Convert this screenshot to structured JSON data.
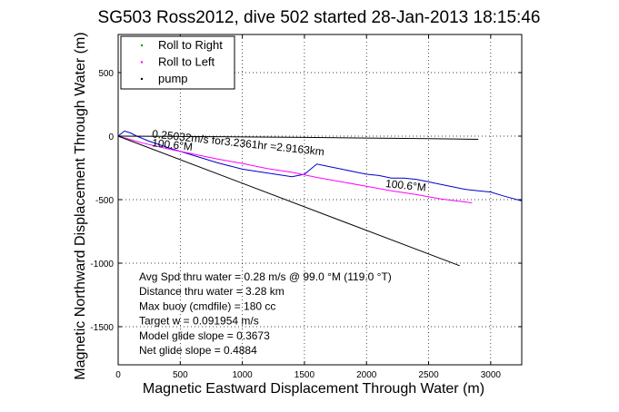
{
  "chart_data": {
    "type": "line",
    "title": "SG503 Ross2012, dive 502 started 28-Jan-2013 18:15:46",
    "xlabel": "Magnetic Eastward Displacement Through Water (m)",
    "ylabel": "Magnetic Northward Displacement Through Water (m)",
    "xlim": [
      0,
      3250
    ],
    "ylim": [
      -1800,
      800
    ],
    "xticks": [
      0,
      500,
      1000,
      1500,
      2000,
      2500,
      3000
    ],
    "yticks": [
      -1500,
      -1000,
      -500,
      0,
      500
    ],
    "grid": true,
    "legend_position": "top-left",
    "legend": [
      {
        "label": "Roll to Right",
        "color": "#00a000",
        "marker": "dot"
      },
      {
        "label": "Roll to Left",
        "color": "#ff00ff",
        "marker": "dot"
      },
      {
        "label": "pump",
        "color": "#000000",
        "marker": "dot"
      }
    ],
    "series": [
      {
        "id": "track",
        "color": "#0000cc",
        "x": [
          0,
          50,
          100,
          150,
          250,
          400,
          600,
          800,
          1000,
          1200,
          1400,
          1500,
          1600,
          1700,
          1800,
          1900,
          2000,
          2100,
          2200,
          2300,
          2400,
          2500,
          2600,
          2700,
          2800,
          2900,
          3000,
          3100,
          3250
        ],
        "y": [
          0,
          40,
          25,
          0,
          -40,
          -90,
          -150,
          -210,
          -260,
          -290,
          -320,
          -300,
          -220,
          -240,
          -260,
          -280,
          -300,
          -310,
          -330,
          -330,
          -340,
          -360,
          -380,
          -400,
          -420,
          -430,
          -440,
          -470,
          -510
        ]
      },
      {
        "id": "roll-left",
        "color": "#ff00ff",
        "x": [
          0,
          200,
          400,
          600,
          800,
          1000,
          1200,
          1400,
          1600,
          1800,
          2000,
          2200,
          2400,
          2600,
          2850
        ],
        "y": [
          0,
          -55,
          -100,
          -140,
          -180,
          -215,
          -255,
          -285,
          -325,
          -360,
          -395,
          -430,
          -460,
          -495,
          -525
        ]
      },
      {
        "id": "current",
        "color": "#000000",
        "x": [
          0,
          500,
          1000,
          1500,
          2000,
          2500,
          2900
        ],
        "y": [
          0,
          -3,
          -6,
          -10,
          -15,
          -20,
          -25
        ]
      },
      {
        "id": "heading-line",
        "color": "#000000",
        "x": [
          0,
          2750
        ],
        "y": [
          0,
          -1020
        ]
      }
    ],
    "annotations": [
      {
        "text": "0.25032m/s for3.2361hr =2.9163km",
        "x": 270,
        "y": -10,
        "rotate": 6
      },
      {
        "text": "100.6°M",
        "x": 270,
        "y": -80,
        "rotate": 6
      },
      {
        "text": "100.6°M",
        "x": 2150,
        "y": -400,
        "rotate": 6
      }
    ],
    "info": [
      "Avg Spd thru water =  0.28 m/s @  99.0   °M (119.0 °T)",
      "Distance thru water =  3.28 km",
      "Max buoy (cmdfile) = 180 cc",
      "Target w = 0.091954 m/s",
      "Model glide slope = 0.3673",
      "Net glide slope = 0.4884"
    ]
  }
}
